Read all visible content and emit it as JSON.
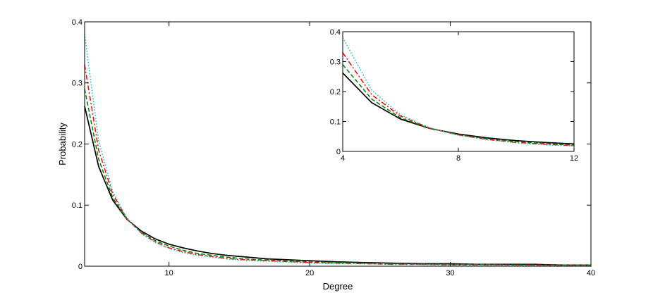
{
  "chart_data": [
    {
      "id": "main",
      "type": "line",
      "xlabel": "Degree",
      "ylabel": "Probability",
      "xlim": [
        4,
        40
      ],
      "ylim": [
        0,
        0.4
      ],
      "xticks": [
        10,
        20,
        30,
        40
      ],
      "yticks": [
        0,
        0.1,
        0.2,
        0.3,
        0.4
      ],
      "xtick_labels": [
        "10",
        "20",
        "30",
        "40"
      ],
      "ytick_labels": [
        "0",
        "0.1",
        "0.2",
        "0.3",
        "0.4"
      ],
      "grid": false,
      "x": [
        4,
        5,
        6,
        7,
        8,
        9,
        10,
        11,
        12,
        13,
        14,
        15,
        16,
        17,
        18,
        19,
        20,
        22,
        24,
        26,
        28,
        30,
        32,
        34,
        36,
        38,
        40
      ],
      "series": [
        {
          "style": "solid",
          "color": "#000000",
          "values": [
            0.262,
            0.163,
            0.108,
            0.077,
            0.058,
            0.045,
            0.036,
            0.03,
            0.025,
            0.021,
            0.018,
            0.016,
            0.014,
            0.012,
            0.011,
            0.01,
            0.009,
            0.007,
            0.006,
            0.005,
            0.004,
            0.004,
            0.003,
            0.003,
            0.003,
            0.002,
            0.002
          ]
        },
        {
          "style": "dashed",
          "color": "#008000",
          "values": [
            0.29,
            0.175,
            0.112,
            0.077,
            0.056,
            0.042,
            0.033,
            0.026,
            0.021,
            0.018,
            0.015,
            0.013,
            0.011,
            0.01,
            0.009,
            0.008,
            0.007,
            0.006,
            0.005,
            0.004,
            0.003,
            0.003,
            0.003,
            0.002,
            0.002,
            0.002,
            0.002
          ]
        },
        {
          "style": "dashdot",
          "color": "#ff0000",
          "values": [
            0.33,
            0.19,
            0.118,
            0.078,
            0.055,
            0.04,
            0.03,
            0.024,
            0.019,
            0.016,
            0.013,
            0.011,
            0.01,
            0.009,
            0.008,
            0.007,
            0.006,
            0.005,
            0.004,
            0.003,
            0.003,
            0.002,
            0.002,
            0.002,
            0.002,
            0.001,
            0.001
          ]
        },
        {
          "style": "dotted",
          "color": "#00bfbf",
          "values": [
            0.38,
            0.205,
            0.122,
            0.079,
            0.054,
            0.039,
            0.029,
            0.022,
            0.018,
            0.015,
            0.012,
            0.01,
            0.009,
            0.008,
            0.007,
            0.006,
            0.005,
            0.004,
            0.004,
            0.003,
            0.003,
            0.002,
            0.002,
            0.002,
            0.001,
            0.001,
            0.001
          ]
        }
      ]
    },
    {
      "id": "inset",
      "type": "line",
      "xlim": [
        4,
        12
      ],
      "ylim": [
        0,
        0.4
      ],
      "xticks": [
        4,
        8,
        12
      ],
      "yticks": [
        0,
        0.1,
        0.2,
        0.3,
        0.4
      ],
      "xtick_labels": [
        "4",
        "8",
        "12"
      ],
      "ytick_labels": [
        "0",
        "0.1",
        "0.2",
        "0.3",
        "0.4"
      ],
      "grid": false,
      "x": [
        4,
        5,
        6,
        7,
        8,
        9,
        10,
        11,
        12
      ],
      "series": [
        {
          "style": "solid",
          "color": "#000000",
          "values": [
            0.262,
            0.163,
            0.108,
            0.077,
            0.058,
            0.045,
            0.036,
            0.03,
            0.025
          ]
        },
        {
          "style": "dashed",
          "color": "#008000",
          "values": [
            0.29,
            0.175,
            0.112,
            0.077,
            0.056,
            0.042,
            0.033,
            0.026,
            0.021
          ]
        },
        {
          "style": "dashdot",
          "color": "#ff0000",
          "values": [
            0.33,
            0.19,
            0.118,
            0.078,
            0.055,
            0.04,
            0.03,
            0.024,
            0.019
          ]
        },
        {
          "style": "dotted",
          "color": "#00bfbf",
          "values": [
            0.38,
            0.205,
            0.122,
            0.079,
            0.054,
            0.039,
            0.029,
            0.022,
            0.018
          ]
        }
      ]
    }
  ]
}
